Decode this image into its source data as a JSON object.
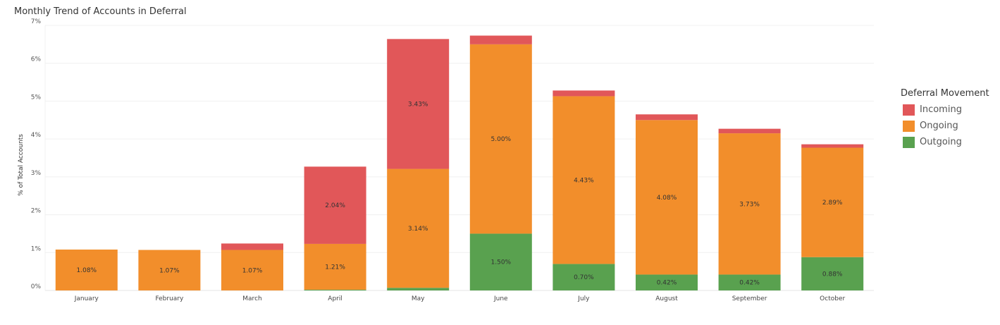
{
  "chart_data": {
    "type": "bar",
    "stacked": true,
    "title": "Monthly Trend of Accounts in Deferral",
    "xlabel": "",
    "ylabel": "% of Total Accounts",
    "ylim": [
      0,
      7
    ],
    "yticks": [
      "0%",
      "1%",
      "2%",
      "3%",
      "4%",
      "5%",
      "6%",
      "7%"
    ],
    "grid": true,
    "legend_title": "Deferral Movement",
    "legend_position": "right",
    "categories": [
      "January",
      "February",
      "March",
      "April",
      "May",
      "June",
      "July",
      "August",
      "September",
      "October"
    ],
    "series": [
      {
        "name": "Outgoing",
        "color": "#59A14F",
        "values": [
          0,
          0,
          0,
          0.02,
          0.07,
          1.5,
          0.7,
          0.42,
          0.42,
          0.88
        ],
        "labels": [
          "",
          "",
          "",
          "",
          "",
          "1.50%",
          "0.70%",
          "0.42%",
          "0.42%",
          "0.88%"
        ]
      },
      {
        "name": "Ongoing",
        "color": "#F28E2B",
        "values": [
          1.08,
          1.07,
          1.07,
          1.21,
          3.14,
          5.0,
          4.43,
          4.08,
          3.73,
          2.89
        ],
        "labels": [
          "1.08%",
          "1.07%",
          "1.07%",
          "1.21%",
          "3.14%",
          "5.00%",
          "4.43%",
          "4.08%",
          "3.73%",
          "2.89%"
        ]
      },
      {
        "name": "Incoming",
        "color": "#E15759",
        "values": [
          0,
          0,
          0.17,
          2.04,
          3.43,
          0.23,
          0.15,
          0.15,
          0.12,
          0.09
        ],
        "labels": [
          "",
          "",
          "",
          "2.04%",
          "3.43%",
          "",
          "",
          "",
          "",
          ""
        ]
      }
    ]
  },
  "legend_order": [
    "Incoming",
    "Ongoing",
    "Outgoing"
  ]
}
